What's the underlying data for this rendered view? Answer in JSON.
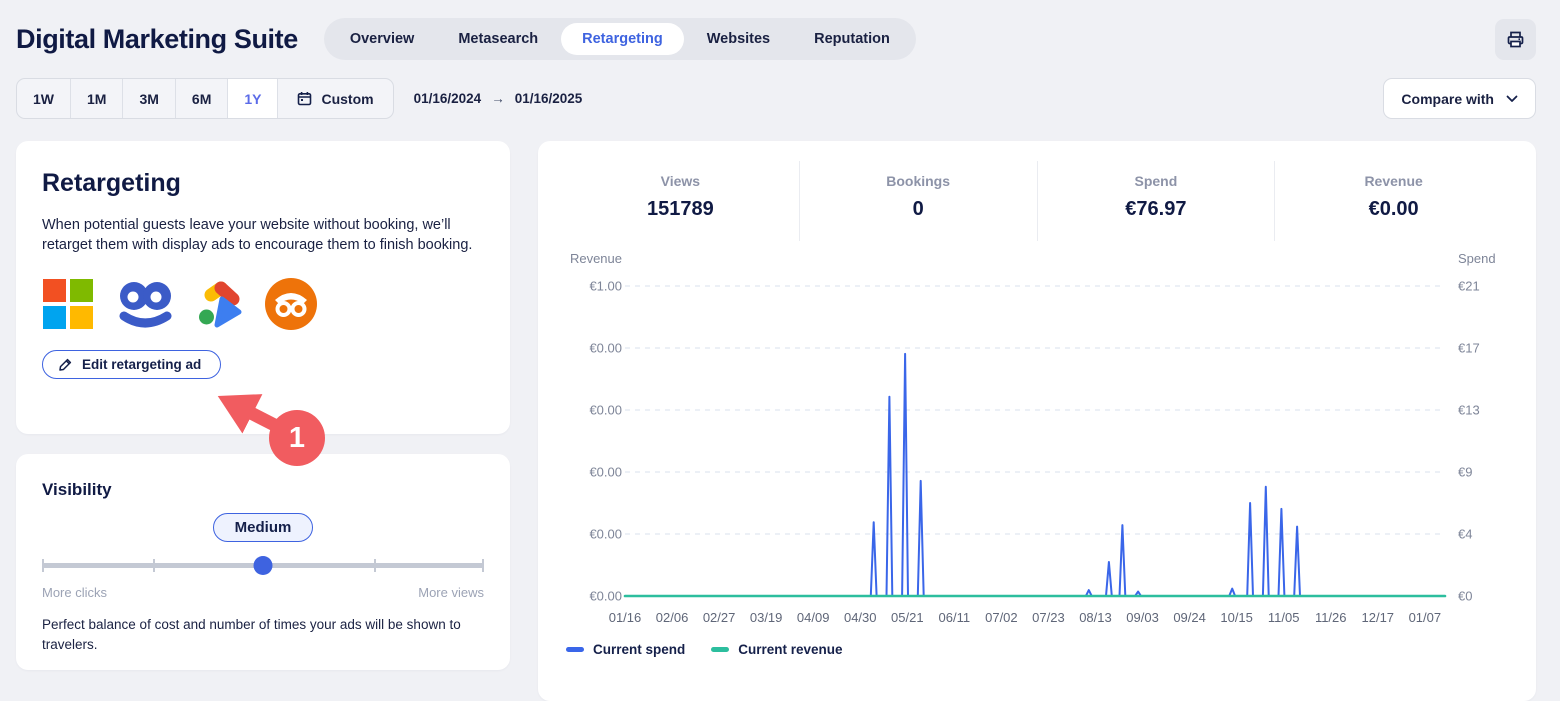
{
  "header": {
    "title": "Digital Marketing Suite",
    "tabs": [
      {
        "label": "Overview",
        "active": false
      },
      {
        "label": "Metasearch",
        "active": false
      },
      {
        "label": "Retargeting",
        "active": true
      },
      {
        "label": "Websites",
        "active": false
      },
      {
        "label": "Reputation",
        "active": false
      }
    ]
  },
  "toolbar": {
    "ranges": [
      {
        "label": "1W",
        "active": false
      },
      {
        "label": "1M",
        "active": false
      },
      {
        "label": "3M",
        "active": false
      },
      {
        "label": "6M",
        "active": false
      },
      {
        "label": "1Y",
        "active": true
      }
    ],
    "custom_label": "Custom",
    "date_from": "01/16/2024",
    "date_arrow": "→",
    "date_to": "01/16/2025",
    "compare_label": "Compare with"
  },
  "retargeting_card": {
    "title": "Retargeting",
    "description": "When potential guests leave your website without booking, we’ll retarget them with display ads to encourage them to finish booking.",
    "logos": [
      "microsoft-logo",
      "blue-smiley-logo",
      "google-ads-logo",
      "outbrain-logo"
    ],
    "edit_button_label": "Edit retargeting ad",
    "annotation_number": "1"
  },
  "visibility_card": {
    "title": "Visibility",
    "level_label": "Medium",
    "slider_value_percent": 50,
    "left_label": "More clicks",
    "right_label": "More views",
    "description": "Perfect balance of cost and number of times your ads will be shown to travelers."
  },
  "stats": [
    {
      "label": "Views",
      "value": "151789"
    },
    {
      "label": "Bookings",
      "value": "0"
    },
    {
      "label": "Spend",
      "value": "€76.97"
    },
    {
      "label": "Revenue",
      "value": "€0.00"
    }
  ],
  "chart_data": {
    "type": "line",
    "title": "",
    "grid": true,
    "legend_position": "bottom-left",
    "x_axis": {
      "tick_labels": [
        "01/16",
        "02/06",
        "02/27",
        "03/19",
        "04/09",
        "04/30",
        "05/21",
        "06/11",
        "07/02",
        "07/23",
        "08/13",
        "09/03",
        "09/24",
        "10/15",
        "11/05",
        "11/26",
        "12/17",
        "01/07"
      ],
      "tick_interval_days": 21,
      "range_days": 366
    },
    "left_axis": {
      "title": "Revenue",
      "tick_labels": [
        "€1.00",
        "€0.00",
        "€0.00",
        "€0.00",
        "€0.00",
        "€0.00"
      ],
      "max": 1,
      "min": 0
    },
    "right_axis": {
      "title": "Spend",
      "tick_labels": [
        "€21",
        "€17",
        "€13",
        "€9",
        "€4",
        "€0"
      ],
      "max": 21,
      "min": 0
    },
    "series": [
      {
        "name": "Current spend",
        "color": "#3A66E9",
        "axis": "right",
        "baseline": 0,
        "spikes": [
          {
            "date": "05/06",
            "day": 111,
            "value": 5.0
          },
          {
            "date": "05/13",
            "day": 118,
            "value": 13.5
          },
          {
            "date": "05/20",
            "day": 125,
            "value": 16.4
          },
          {
            "date": "05/27",
            "day": 132,
            "value": 7.8
          },
          {
            "date": "08/10",
            "day": 207,
            "value": 0.4
          },
          {
            "date": "08/19",
            "day": 216,
            "value": 2.3
          },
          {
            "date": "08/25",
            "day": 222,
            "value": 4.8
          },
          {
            "date": "09/01",
            "day": 229,
            "value": 0.3
          },
          {
            "date": "10/13",
            "day": 271,
            "value": 0.5
          },
          {
            "date": "10/21",
            "day": 279,
            "value": 6.3
          },
          {
            "date": "10/28",
            "day": 286,
            "value": 7.4
          },
          {
            "date": "11/04",
            "day": 293,
            "value": 5.9
          },
          {
            "date": "11/11",
            "day": 300,
            "value": 4.7
          }
        ]
      },
      {
        "name": "Current revenue",
        "color": "#2CBE9E",
        "axis": "left",
        "flat_value": 0
      }
    ]
  },
  "colors": {
    "accent_blue": "#3E63E0",
    "spend_blue": "#3A66E9",
    "revenue_teal": "#2CBE9E",
    "annotation_red": "#F15C60",
    "navy": "#101A44"
  }
}
